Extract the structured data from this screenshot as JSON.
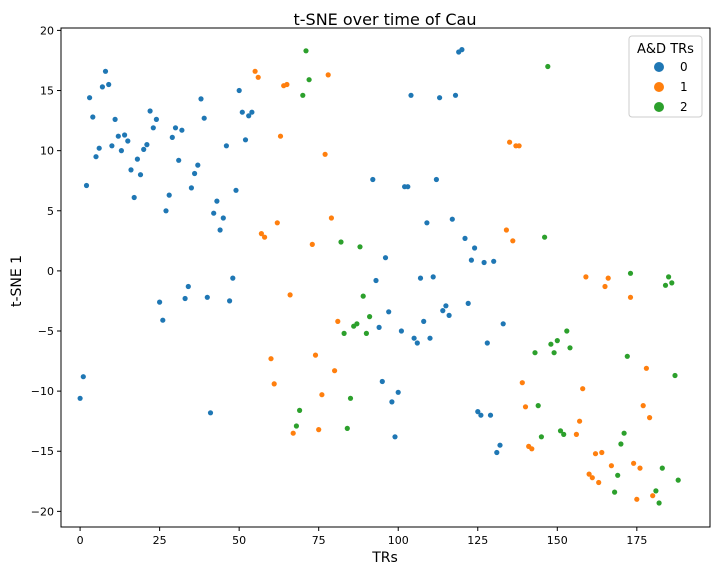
{
  "chart_data": {
    "type": "scatter",
    "title": "t-SNE over time of Cau",
    "xlabel": "TRs",
    "ylabel": "t-SNE 1",
    "xlim": [
      -6,
      198
    ],
    "ylim": [
      -21.3,
      20.2
    ],
    "xticks": [
      0,
      25,
      50,
      75,
      100,
      125,
      150,
      175
    ],
    "yticks": [
      -20,
      -15,
      -10,
      -5,
      0,
      5,
      10,
      15,
      20
    ],
    "grid": false,
    "legend": {
      "title": "A&D TRs",
      "placement": "top-right"
    },
    "series": [
      {
        "name": "0",
        "color": "#1f77b4",
        "points": [
          [
            0,
            -10.6
          ],
          [
            1,
            -8.8
          ],
          [
            2,
            7.1
          ],
          [
            3,
            14.4
          ],
          [
            4,
            12.8
          ],
          [
            5,
            9.5
          ],
          [
            6,
            10.2
          ],
          [
            7,
            15.3
          ],
          [
            8,
            16.6
          ],
          [
            9,
            15.5
          ],
          [
            10,
            10.4
          ],
          [
            11,
            12.6
          ],
          [
            12,
            11.2
          ],
          [
            13,
            10.0
          ],
          [
            14,
            11.3
          ],
          [
            15,
            10.8
          ],
          [
            16,
            8.4
          ],
          [
            17,
            6.1
          ],
          [
            18,
            9.3
          ],
          [
            19,
            8.0
          ],
          [
            20,
            10.1
          ],
          [
            21,
            10.5
          ],
          [
            22,
            13.3
          ],
          [
            23,
            11.9
          ],
          [
            24,
            12.6
          ],
          [
            25,
            -2.6
          ],
          [
            26,
            -4.1
          ],
          [
            27,
            5.0
          ],
          [
            28,
            6.3
          ],
          [
            29,
            11.1
          ],
          [
            30,
            11.9
          ],
          [
            31,
            9.2
          ],
          [
            32,
            11.7
          ],
          [
            33,
            -2.3
          ],
          [
            34,
            -1.3
          ],
          [
            35,
            6.9
          ],
          [
            36,
            8.1
          ],
          [
            37,
            8.8
          ],
          [
            38,
            14.3
          ],
          [
            39,
            12.7
          ],
          [
            40,
            -2.2
          ],
          [
            41,
            -11.8
          ],
          [
            42,
            4.8
          ],
          [
            43,
            5.8
          ],
          [
            44,
            3.4
          ],
          [
            45,
            4.4
          ],
          [
            46,
            10.4
          ],
          [
            47,
            -2.5
          ],
          [
            48,
            -0.6
          ],
          [
            49,
            6.7
          ],
          [
            50,
            15.0
          ],
          [
            51,
            13.2
          ],
          [
            52,
            10.9
          ],
          [
            53,
            12.9
          ],
          [
            54,
            13.2
          ],
          [
            92,
            7.6
          ],
          [
            93,
            -0.8
          ],
          [
            94,
            -4.7
          ],
          [
            95,
            -9.2
          ],
          [
            96,
            1.1
          ],
          [
            97,
            -3.4
          ],
          [
            98,
            -10.9
          ],
          [
            99,
            -13.8
          ],
          [
            100,
            -10.1
          ],
          [
            101,
            -5.0
          ],
          [
            102,
            7.0
          ],
          [
            103,
            7.0
          ],
          [
            104,
            14.6
          ],
          [
            105,
            -5.6
          ],
          [
            106,
            -6.0
          ],
          [
            107,
            -0.6
          ],
          [
            108,
            -4.2
          ],
          [
            109,
            4.0
          ],
          [
            110,
            -5.6
          ],
          [
            111,
            -0.5
          ],
          [
            112,
            7.6
          ],
          [
            113,
            14.4
          ],
          [
            114,
            -3.3
          ],
          [
            115,
            -2.9
          ],
          [
            116,
            -3.7
          ],
          [
            117,
            4.3
          ],
          [
            118,
            14.6
          ],
          [
            119,
            18.2
          ],
          [
            120,
            18.4
          ],
          [
            121,
            2.7
          ],
          [
            122,
            -2.7
          ],
          [
            123,
            0.9
          ],
          [
            124,
            1.9
          ],
          [
            125,
            -11.7
          ],
          [
            126,
            -12.0
          ],
          [
            127,
            0.7
          ],
          [
            128,
            -6.0
          ],
          [
            129,
            -12.0
          ],
          [
            130,
            0.8
          ],
          [
            131,
            -15.1
          ],
          [
            132,
            -14.5
          ],
          [
            133,
            -4.4
          ]
        ]
      },
      {
        "name": "1",
        "color": "#ff7f0e",
        "points": [
          [
            55,
            16.6
          ],
          [
            56,
            16.1
          ],
          [
            57,
            3.1
          ],
          [
            58,
            2.8
          ],
          [
            60,
            -7.3
          ],
          [
            61,
            -9.4
          ],
          [
            62,
            4.0
          ],
          [
            63,
            11.2
          ],
          [
            64,
            15.4
          ],
          [
            65,
            15.5
          ],
          [
            66,
            -2.0
          ],
          [
            67,
            -13.5
          ],
          [
            73,
            2.2
          ],
          [
            74,
            -7.0
          ],
          [
            75,
            -13.2
          ],
          [
            76,
            -10.3
          ],
          [
            77,
            9.7
          ],
          [
            78,
            16.3
          ],
          [
            79,
            4.4
          ],
          [
            80,
            -8.3
          ],
          [
            81,
            -4.2
          ],
          [
            134,
            3.4
          ],
          [
            135,
            10.7
          ],
          [
            136,
            2.5
          ],
          [
            137,
            10.4
          ],
          [
            138,
            10.4
          ],
          [
            139,
            -9.3
          ],
          [
            140,
            -11.3
          ],
          [
            141,
            -14.6
          ],
          [
            142,
            -14.8
          ],
          [
            156,
            -13.6
          ],
          [
            157,
            -12.5
          ],
          [
            158,
            -9.8
          ],
          [
            159,
            -0.5
          ],
          [
            160,
            -16.9
          ],
          [
            161,
            -17.2
          ],
          [
            162,
            -15.2
          ],
          [
            163,
            -17.6
          ],
          [
            164,
            -15.1
          ],
          [
            165,
            -1.3
          ],
          [
            166,
            -0.6
          ],
          [
            167,
            -16.2
          ],
          [
            173,
            -2.2
          ],
          [
            174,
            -16.0
          ],
          [
            175,
            -19.0
          ],
          [
            176,
            -16.4
          ],
          [
            177,
            -11.2
          ],
          [
            178,
            -8.1
          ],
          [
            179,
            -12.2
          ],
          [
            180,
            -18.7
          ]
        ]
      },
      {
        "name": "2",
        "color": "#2ca02c",
        "points": [
          [
            68,
            -12.9
          ],
          [
            69,
            -11.6
          ],
          [
            70,
            14.6
          ],
          [
            71,
            18.3
          ],
          [
            72,
            15.9
          ],
          [
            82,
            2.4
          ],
          [
            83,
            -5.2
          ],
          [
            84,
            -13.1
          ],
          [
            85,
            -10.6
          ],
          [
            86,
            -4.6
          ],
          [
            87,
            -4.4
          ],
          [
            88,
            2.0
          ],
          [
            89,
            -2.1
          ],
          [
            90,
            -5.2
          ],
          [
            91,
            -3.8
          ],
          [
            143,
            -6.8
          ],
          [
            144,
            -11.2
          ],
          [
            145,
            -13.8
          ],
          [
            146,
            2.8
          ],
          [
            147,
            17.0
          ],
          [
            148,
            -6.1
          ],
          [
            149,
            -6.8
          ],
          [
            150,
            -5.8
          ],
          [
            151,
            -13.3
          ],
          [
            152,
            -13.6
          ],
          [
            153,
            -5.0
          ],
          [
            154,
            -6.4
          ],
          [
            168,
            -18.4
          ],
          [
            169,
            -17.0
          ],
          [
            170,
            -14.4
          ],
          [
            171,
            -13.5
          ],
          [
            172,
            -7.1
          ],
          [
            173,
            -0.2
          ],
          [
            181,
            -18.3
          ],
          [
            182,
            -19.3
          ],
          [
            183,
            -16.4
          ],
          [
            184,
            -1.2
          ],
          [
            185,
            -0.5
          ],
          [
            186,
            -1.0
          ],
          [
            187,
            -8.7
          ],
          [
            188,
            -17.4
          ]
        ]
      }
    ]
  }
}
